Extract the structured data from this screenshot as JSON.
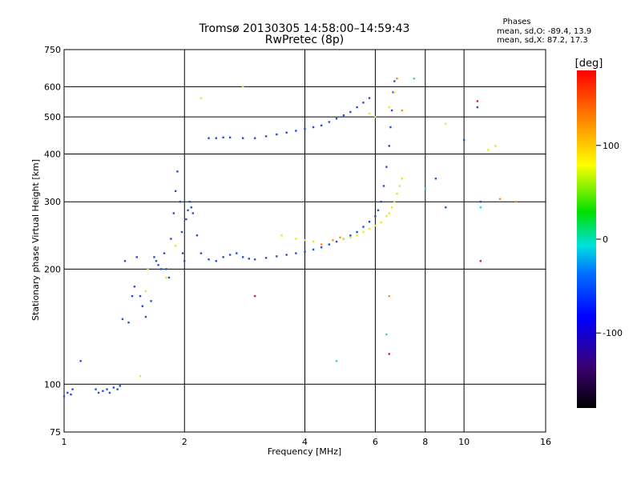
{
  "chart_data": {
    "type": "scatter",
    "title": "Tromsø 20130305 14:58:00–14:59:43",
    "subtitle": "RwPretec (8p)",
    "xlabel": "Frequency [MHz]",
    "ylabel": "Stationary phase Virtual Height [km]",
    "x_scale": "log",
    "y_scale": "log",
    "xlim": [
      1,
      16
    ],
    "ylim": [
      75,
      750
    ],
    "x_ticks": [
      1,
      2,
      4,
      6,
      8,
      10,
      16
    ],
    "y_ticks": [
      75,
      100,
      200,
      300,
      400,
      500,
      600,
      750
    ],
    "grid": true,
    "stats": {
      "title": "Phases",
      "line1": "mean, sd,O: -89.4, 13.9",
      "line2": "mean, sd,X:  87.2, 17.3"
    },
    "colorbar": {
      "label": "[deg]",
      "ticks": [
        "100",
        "0",
        "-100"
      ],
      "tick_values": [
        100,
        0,
        -100
      ],
      "range": [
        -180,
        180
      ]
    },
    "series": [
      {
        "color_hex": "#1e4ee6",
        "phase": -100,
        "x": [
          1.0,
          1.02,
          1.04,
          1.05,
          1.2,
          1.22,
          1.25,
          1.28,
          1.3,
          1.33,
          1.36,
          1.38,
          1.4,
          1.45,
          1.48,
          1.5,
          1.52,
          1.55,
          1.57,
          1.6,
          1.62,
          1.65,
          1.68,
          1.7,
          1.72,
          1.75,
          1.78,
          1.8,
          1.83,
          1.85,
          1.88,
          1.9,
          1.92,
          1.95,
          1.97,
          1.98,
          2.0,
          2.02,
          2.04,
          2.06,
          2.08,
          2.1,
          2.15,
          2.2,
          2.3,
          2.4,
          2.5,
          2.6,
          2.7,
          2.8,
          2.9,
          3.0,
          3.2,
          3.4,
          3.6,
          3.8,
          4.0,
          4.2,
          4.4,
          4.6,
          4.8,
          5.0,
          5.2,
          5.4,
          5.6,
          5.8,
          6.0,
          6.1,
          6.2,
          6.3,
          6.4,
          6.5,
          6.55,
          6.6,
          6.65,
          6.7,
          2.3,
          2.4,
          2.5,
          2.6,
          2.8,
          3.0,
          3.2,
          3.4,
          3.6,
          3.8,
          4.0,
          4.2,
          4.4,
          4.6,
          4.8,
          5.0,
          5.2,
          5.4,
          5.6,
          5.8,
          1.1,
          1.42,
          8.5,
          9.0,
          10.0,
          10.8,
          11.0
        ],
        "y": [
          93,
          95,
          94,
          97,
          97,
          95,
          96,
          97,
          95,
          98,
          97,
          99,
          148,
          145,
          170,
          180,
          215,
          170,
          160,
          150,
          200,
          165,
          215,
          210,
          205,
          200,
          220,
          200,
          190,
          240,
          280,
          320,
          360,
          300,
          250,
          220,
          210,
          270,
          285,
          300,
          290,
          280,
          245,
          220,
          212,
          210,
          215,
          218,
          220,
          215,
          213,
          212,
          214,
          216,
          218,
          220,
          222,
          225,
          228,
          232,
          236,
          240,
          245,
          250,
          258,
          266,
          275,
          285,
          300,
          330,
          370,
          420,
          470,
          520,
          580,
          620,
          440,
          440,
          442,
          442,
          440,
          440,
          445,
          450,
          455,
          460,
          465,
          470,
          475,
          485,
          495,
          505,
          515,
          530,
          545,
          560,
          115,
          210,
          345,
          290,
          435,
          530,
          300
        ]
      },
      {
        "color_hex": "#e8e820",
        "phase": 110,
        "x": [
          5.0,
          5.2,
          5.4,
          5.6,
          5.8,
          6.0,
          6.2,
          6.4,
          6.5,
          6.6,
          6.7,
          6.8,
          6.9,
          7.0,
          5.8,
          6.0,
          1.55,
          1.6,
          1.62,
          1.8,
          1.9,
          2.2,
          2.8,
          3.5,
          3.8,
          4.0,
          4.2,
          6.5,
          6.7,
          9.0,
          11.5,
          12.0
        ],
        "y": [
          240,
          242,
          245,
          250,
          255,
          260,
          265,
          275,
          280,
          290,
          300,
          315,
          330,
          345,
          510,
          500,
          105,
          175,
          200,
          190,
          230,
          560,
          600,
          245,
          240,
          238,
          236,
          530,
          580,
          480,
          410,
          420
        ]
      },
      {
        "color_hex": "#ff8c1a",
        "phase": 140,
        "x": [
          4.4,
          4.7,
          4.9,
          6.5,
          6.8,
          7.0,
          12.3,
          13.5
        ],
        "y": [
          232,
          238,
          242,
          170,
          630,
          520,
          305,
          300
        ]
      },
      {
        "color_hex": "#e81e1e",
        "phase": 170,
        "x": [
          3.0,
          10.8,
          11.0,
          6.5
        ],
        "y": [
          170,
          550,
          210,
          120
        ]
      },
      {
        "color_hex": "#24d8d8",
        "phase": 20,
        "x": [
          4.8,
          6.4,
          7.5,
          8.0,
          11.0
        ],
        "y": [
          115,
          135,
          630,
          325,
          290
        ]
      }
    ]
  }
}
